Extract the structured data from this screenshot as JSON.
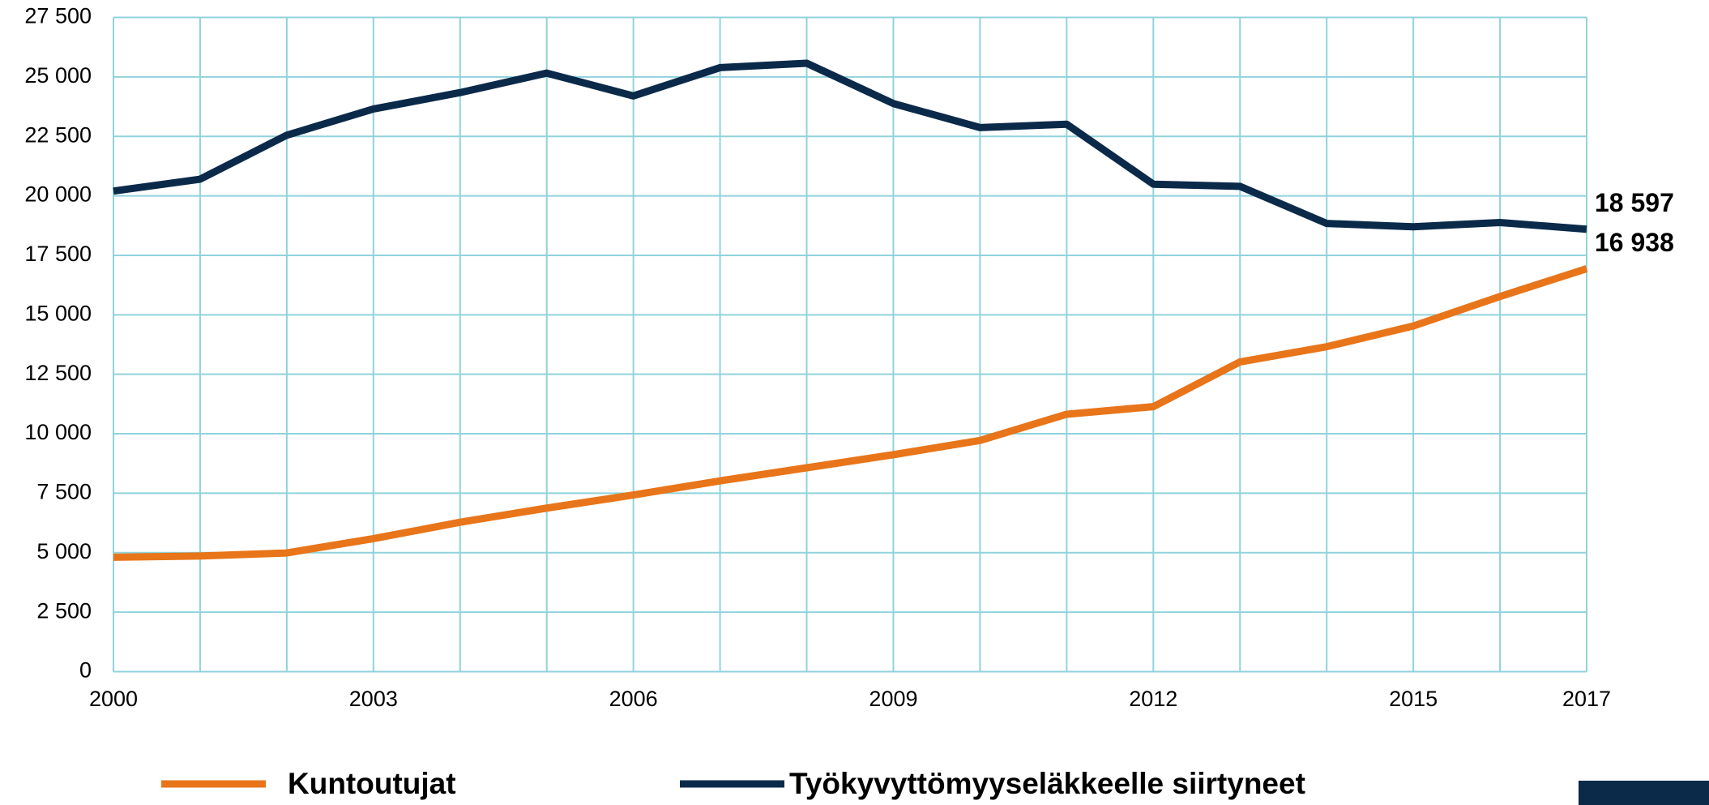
{
  "chart_data": {
    "type": "line",
    "x": [
      2000,
      2001,
      2002,
      2003,
      2004,
      2005,
      2006,
      2007,
      2008,
      2009,
      2010,
      2011,
      2012,
      2013,
      2014,
      2015,
      2016,
      2017
    ],
    "xlim": [
      2000,
      2017
    ],
    "xticks": [
      2000,
      2003,
      2006,
      2009,
      2012,
      2015,
      2017
    ],
    "ylim": [
      0,
      27500
    ],
    "yticks": [
      0,
      {
        "value": 2500,
        "label": "2 500"
      },
      {
        "value": 5000,
        "label": "5 000"
      },
      {
        "value": 7500,
        "label": "7 500"
      },
      {
        "value": 10000,
        "label": "10 000"
      },
      {
        "value": 12500,
        "label": "12 500"
      },
      {
        "value": 15000,
        "label": "15 000"
      },
      {
        "value": 17500,
        "label": "17 500"
      },
      {
        "value": 20000,
        "label": "20 000"
      },
      {
        "value": 22500,
        "label": "22 500"
      },
      {
        "value": 25000,
        "label": "25 000"
      },
      {
        "value": 27500,
        "label": "27 500"
      }
    ],
    "grid": true,
    "series": [
      {
        "name": "Kuntoutujat",
        "color": "#e8751a",
        "values": [
          4810,
          4860,
          4990,
          5590,
          6280,
          6875,
          7425,
          8020,
          8570,
          9120,
          9720,
          10820,
          11140,
          13020,
          13660,
          14530,
          15770,
          16938
        ],
        "value_labels": [
          null,
          null,
          null,
          null,
          null,
          null,
          null,
          null,
          null,
          null,
          null,
          null,
          null,
          null,
          null,
          null,
          null,
          "16 938"
        ]
      },
      {
        "name": "Työkyvyttömyyseläkkeelle siirtyneet",
        "color": "#0b2a4a",
        "values": [
          20200,
          20700,
          22550,
          23650,
          24340,
          25160,
          24200,
          25390,
          25575,
          23880,
          22870,
          23010,
          20490,
          20400,
          18840,
          18700,
          18880,
          18597
        ],
        "value_labels": [
          null,
          null,
          null,
          null,
          null,
          null,
          null,
          null,
          null,
          null,
          null,
          null,
          null,
          null,
          null,
          null,
          null,
          "18 597"
        ]
      }
    ]
  }
}
